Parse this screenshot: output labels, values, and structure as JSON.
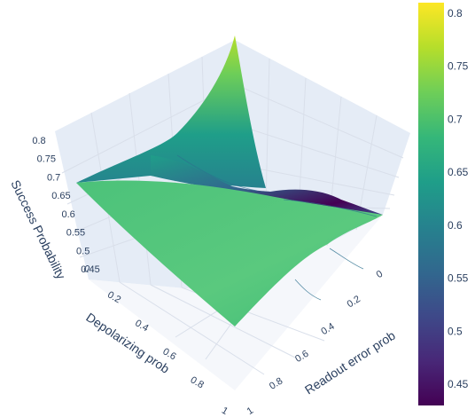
{
  "chart_data": {
    "type": "surface",
    "title": "",
    "x_axis": {
      "label": "Depolarizing prob",
      "range": [
        0,
        1
      ],
      "ticks": [
        {
          "v": 0,
          "t": "0"
        },
        {
          "v": 0.2,
          "t": "0.2"
        },
        {
          "v": 0.4,
          "t": "0.4"
        },
        {
          "v": 0.6,
          "t": "0.6"
        },
        {
          "v": 0.8,
          "t": "0.8"
        },
        {
          "v": 1,
          "t": "1"
        }
      ]
    },
    "y_axis": {
      "label": "Readout error prob",
      "range": [
        0,
        1
      ],
      "ticks": [
        {
          "v": 0,
          "t": "0"
        },
        {
          "v": 0.2,
          "t": "0.2"
        },
        {
          "v": 0.4,
          "t": "0.4"
        },
        {
          "v": 0.6,
          "t": "0.6"
        },
        {
          "v": 0.8,
          "t": "0.8"
        },
        {
          "v": 1,
          "t": "1"
        }
      ]
    },
    "z_axis": {
      "label": "Success Probability",
      "range": [
        0.45,
        0.8
      ],
      "ticks": [
        {
          "v": 0.45,
          "t": "0.45"
        },
        {
          "v": 0.5,
          "t": "0.5"
        },
        {
          "v": 0.55,
          "t": "0.55"
        },
        {
          "v": 0.6,
          "t": "0.6"
        },
        {
          "v": 0.65,
          "t": "0.65"
        },
        {
          "v": 0.7,
          "t": "0.7"
        },
        {
          "v": 0.75,
          "t": "0.75"
        },
        {
          "v": 0.8,
          "t": "0.8"
        }
      ]
    },
    "surface_samples": [
      {
        "depolarizing": 1.0,
        "readout": 0.0,
        "success": 0.66
      },
      {
        "depolarizing": 0.0,
        "readout": 0.0,
        "success": 0.66
      },
      {
        "depolarizing": 0.0,
        "readout": 1.0,
        "success": 0.82
      },
      {
        "depolarizing": 1.0,
        "readout": 1.0,
        "success": 0.65
      },
      {
        "depolarizing": 0.3,
        "readout": 0.8,
        "success": 0.45
      },
      {
        "depolarizing": 0.5,
        "readout": 0.5,
        "success": 0.66
      }
    ],
    "colorbar": {
      "colorscale": "Viridis",
      "range": [
        0.43,
        0.81
      ],
      "ticks": [
        "0.45",
        "0.5",
        "0.55",
        "0.6",
        "0.65",
        "0.7",
        "0.75",
        "0.8"
      ]
    },
    "colors": {
      "axis_text": "#2a3f5f",
      "grid": "#d9dfea",
      "pane": "#e5ecf6",
      "viridis": [
        "#440154",
        "#482878",
        "#3e4989",
        "#31688e",
        "#26828e",
        "#1f9e89",
        "#35b779",
        "#6ece58",
        "#b5de2b",
        "#fde725"
      ]
    }
  }
}
